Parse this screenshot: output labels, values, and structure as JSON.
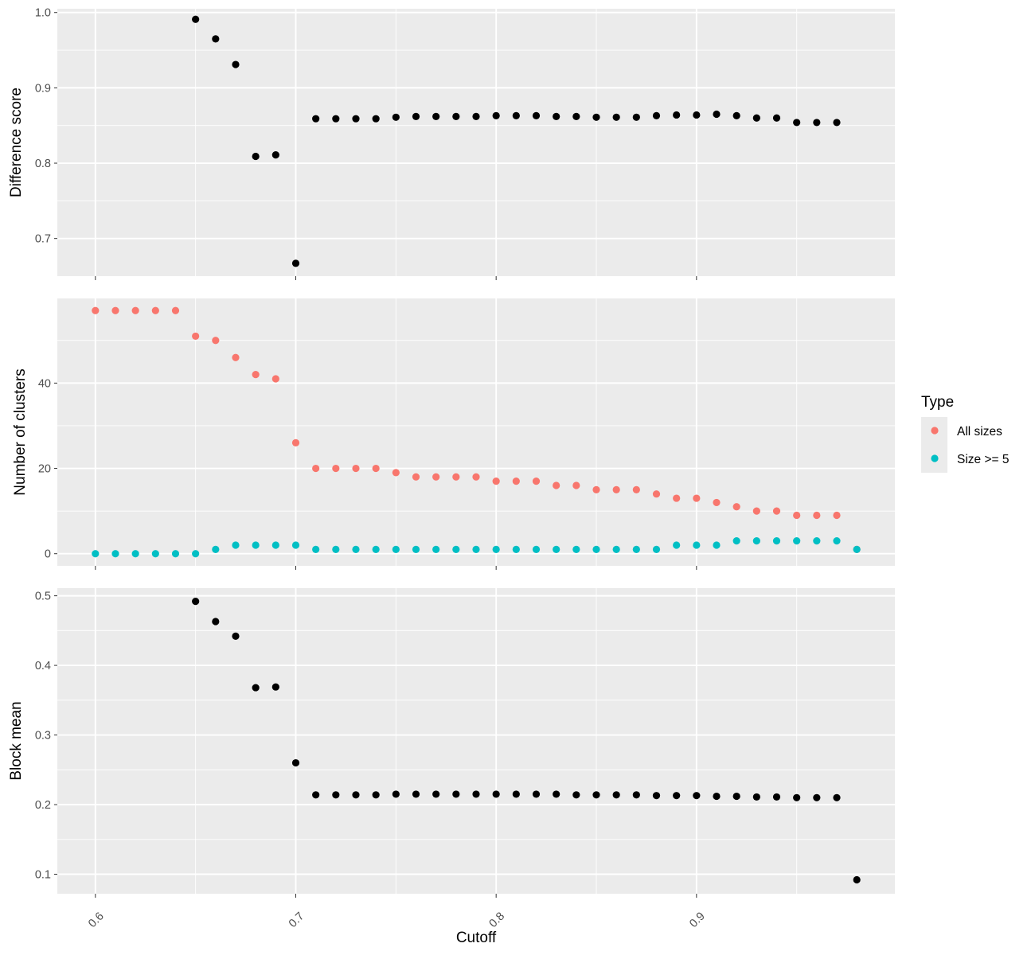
{
  "chart_data": [
    {
      "type": "scatter",
      "ylabel": "Difference score",
      "y_ticks": [
        "0.7",
        "0.8",
        "0.9",
        "1.0"
      ],
      "ylim": [
        0.65,
        1.005
      ],
      "xlim": [
        0.581,
        0.999
      ],
      "grid": true,
      "series": [
        {
          "color": "#000000",
          "x": [
            0.65,
            0.66,
            0.67,
            0.68,
            0.69,
            0.7,
            0.71,
            0.72,
            0.73,
            0.74,
            0.75,
            0.76,
            0.77,
            0.78,
            0.79,
            0.8,
            0.81,
            0.82,
            0.83,
            0.84,
            0.85,
            0.86,
            0.87,
            0.88,
            0.89,
            0.9,
            0.91,
            0.92,
            0.93,
            0.94,
            0.95,
            0.96,
            0.97
          ],
          "y": [
            0.991,
            0.965,
            0.931,
            0.809,
            0.811,
            0.667,
            0.859,
            0.859,
            0.859,
            0.859,
            0.861,
            0.862,
            0.862,
            0.862,
            0.862,
            0.863,
            0.863,
            0.863,
            0.862,
            0.862,
            0.861,
            0.861,
            0.861,
            0.863,
            0.864,
            0.864,
            0.865,
            0.863,
            0.86,
            0.86,
            0.854,
            0.854,
            0.854
          ]
        }
      ]
    },
    {
      "type": "scatter",
      "ylabel": "Number of clusters",
      "y_ticks": [
        "0",
        "20",
        "40"
      ],
      "ylim": [
        -2.85,
        59.85
      ],
      "xlim": [
        0.581,
        0.999
      ],
      "grid": true,
      "legend": {
        "title": "Type",
        "placement": "right"
      },
      "series": [
        {
          "name": "All sizes",
          "color": "#F8766D",
          "x": [
            0.6,
            0.61,
            0.62,
            0.63,
            0.64,
            0.65,
            0.66,
            0.67,
            0.68,
            0.69,
            0.7,
            0.71,
            0.72,
            0.73,
            0.74,
            0.75,
            0.76,
            0.77,
            0.78,
            0.79,
            0.8,
            0.81,
            0.82,
            0.83,
            0.84,
            0.85,
            0.86,
            0.87,
            0.88,
            0.89,
            0.9,
            0.91,
            0.92,
            0.93,
            0.94,
            0.95,
            0.96,
            0.97,
            0.98
          ],
          "y": [
            57,
            57,
            57,
            57,
            57,
            51,
            50,
            46,
            42,
            41,
            26,
            20,
            20,
            20,
            20,
            19,
            18,
            18,
            18,
            18,
            17,
            17,
            17,
            16,
            16,
            15,
            15,
            15,
            14,
            13,
            13,
            12,
            11,
            10,
            10,
            9,
            9,
            9,
            1
          ]
        },
        {
          "name": "Size >= 5",
          "color": "#00BFC4",
          "x": [
            0.6,
            0.61,
            0.62,
            0.63,
            0.64,
            0.65,
            0.66,
            0.67,
            0.68,
            0.69,
            0.7,
            0.71,
            0.72,
            0.73,
            0.74,
            0.75,
            0.76,
            0.77,
            0.78,
            0.79,
            0.8,
            0.81,
            0.82,
            0.83,
            0.84,
            0.85,
            0.86,
            0.87,
            0.88,
            0.89,
            0.9,
            0.91,
            0.92,
            0.93,
            0.94,
            0.95,
            0.96,
            0.97,
            0.98
          ],
          "y": [
            0,
            0,
            0,
            0,
            0,
            0,
            1,
            2,
            2,
            2,
            2,
            1,
            1,
            1,
            1,
            1,
            1,
            1,
            1,
            1,
            1,
            1,
            1,
            1,
            1,
            1,
            1,
            1,
            1,
            2,
            2,
            2,
            3,
            3,
            3,
            3,
            3,
            3,
            1
          ]
        }
      ]
    },
    {
      "type": "scatter",
      "ylabel": "Block mean",
      "xlabel": "Cutoff",
      "x_ticks": [
        "0.6",
        "0.7",
        "0.8",
        "0.9"
      ],
      "y_ticks": [
        "0.1",
        "0.2",
        "0.3",
        "0.4",
        "0.5"
      ],
      "ylim": [
        0.072,
        0.511
      ],
      "xlim": [
        0.581,
        0.999
      ],
      "grid": true,
      "series": [
        {
          "color": "#000000",
          "x": [
            0.65,
            0.66,
            0.67,
            0.68,
            0.69,
            0.7,
            0.71,
            0.72,
            0.73,
            0.74,
            0.75,
            0.76,
            0.77,
            0.78,
            0.79,
            0.8,
            0.81,
            0.82,
            0.83,
            0.84,
            0.85,
            0.86,
            0.87,
            0.88,
            0.89,
            0.9,
            0.91,
            0.92,
            0.93,
            0.94,
            0.95,
            0.96,
            0.97,
            0.98
          ],
          "y": [
            0.492,
            0.463,
            0.442,
            0.368,
            0.369,
            0.26,
            0.214,
            0.214,
            0.214,
            0.214,
            0.215,
            0.215,
            0.215,
            0.215,
            0.215,
            0.215,
            0.215,
            0.215,
            0.215,
            0.214,
            0.214,
            0.214,
            0.214,
            0.213,
            0.213,
            0.213,
            0.212,
            0.212,
            0.211,
            0.211,
            0.21,
            0.21,
            0.21,
            0.092
          ]
        }
      ]
    }
  ]
}
